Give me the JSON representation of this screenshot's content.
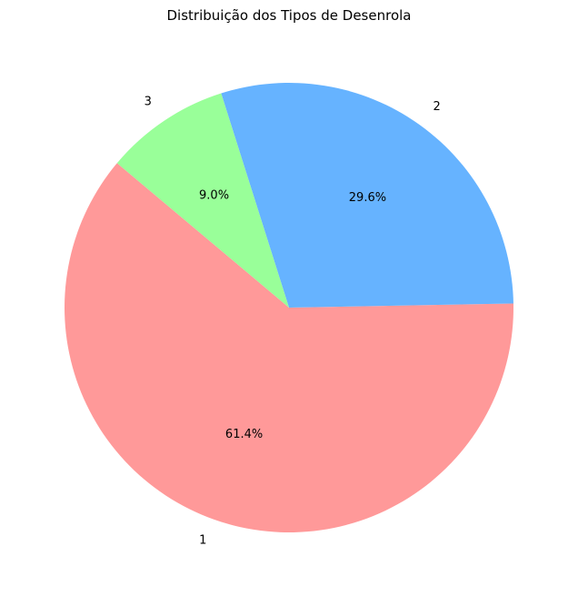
{
  "chart_data": {
    "type": "pie",
    "title": "Distribuição dos Tipos de Desenrola",
    "categories": [
      "1",
      "2",
      "3"
    ],
    "values": [
      61.4,
      29.6,
      9.0
    ],
    "value_labels": [
      "61.4%",
      "29.6%",
      "9.0%"
    ],
    "colors": [
      "#ff9999",
      "#66b3ff",
      "#99ff99"
    ],
    "start_angle_deg": 140,
    "direction": "counterclockwise",
    "legend": "none"
  }
}
